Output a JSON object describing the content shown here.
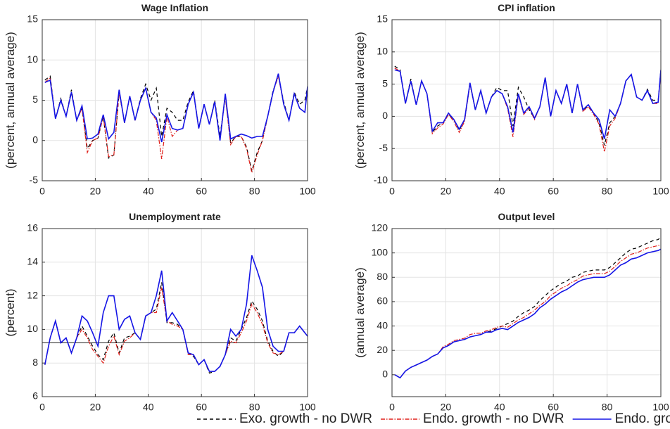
{
  "chart_data": [
    {
      "type": "line",
      "title": "Wage Inflation",
      "ylabel": "(percent, annual average)",
      "x": [
        1,
        3,
        5,
        7,
        9,
        11,
        13,
        15,
        17,
        19,
        21,
        23,
        25,
        27,
        29,
        31,
        33,
        35,
        37,
        39,
        41,
        43,
        45,
        47,
        49,
        51,
        53,
        55,
        57,
        59,
        61,
        63,
        65,
        67,
        69,
        71,
        73,
        75,
        77,
        79,
        81,
        83,
        85,
        87,
        89,
        91,
        93,
        95,
        97,
        99,
        100
      ],
      "xlim": [
        0,
        100
      ],
      "xticks": [
        0,
        20,
        40,
        60,
        80,
        100
      ],
      "ylim": [
        -5,
        15
      ],
      "yticks": [
        -5,
        0,
        5,
        10,
        15
      ],
      "grid": true,
      "series": [
        {
          "values": [
            7.5,
            8,
            2.7,
            5.2,
            3,
            6.3,
            2.5,
            4,
            -1,
            0,
            0.3,
            3,
            -2.2,
            -1.8,
            6,
            2.2,
            5.5,
            2.5,
            5.2,
            7,
            5,
            6.5,
            0.5,
            4,
            3.5,
            2.5,
            2.5,
            4.8,
            6.2,
            1.5,
            4.5,
            2,
            5,
            0.5,
            5.5,
            -0.3,
            0.5,
            0.5,
            -0.8,
            -3.8,
            -1.5,
            0,
            3,
            6.2,
            8,
            4.8,
            2.5,
            6,
            4.5,
            5,
            6.7
          ]
        },
        {
          "values": [
            7.2,
            7.8,
            2.7,
            5,
            3,
            6,
            2.5,
            4,
            -1.5,
            0,
            0.3,
            3,
            -2,
            -1.8,
            6,
            2.2,
            5.5,
            2.5,
            5,
            6.5,
            3.5,
            2.5,
            -2.3,
            3,
            0.5,
            1.3,
            1.5,
            4.5,
            6,
            1.5,
            4.5,
            2,
            4.8,
            0,
            5.5,
            -0.5,
            0.5,
            0.5,
            -1,
            -4,
            -1.8,
            0,
            3,
            6,
            8,
            4.5,
            2.5,
            5.8,
            4,
            3.5,
            6.5
          ]
        },
        {
          "values": [
            7.2,
            7.5,
            2.7,
            5,
            3,
            6,
            2.5,
            4.3,
            0.2,
            0.3,
            0.8,
            3.2,
            0.2,
            1,
            6.3,
            2.2,
            5.5,
            2.5,
            5,
            6.5,
            3.5,
            2.8,
            -0.2,
            3.2,
            1.5,
            1.3,
            1.5,
            4.5,
            6,
            1.5,
            4.5,
            2,
            4.8,
            0,
            5.8,
            0.2,
            0.5,
            0.8,
            0.6,
            0.3,
            0.5,
            0.5,
            3,
            6,
            8.3,
            4.5,
            2.5,
            5.8,
            4,
            3.5,
            6.7
          ]
        }
      ]
    },
    {
      "type": "line",
      "title": "CPI inflation",
      "ylabel": "(percent, annual average)",
      "x": [
        1,
        3,
        5,
        7,
        9,
        11,
        13,
        15,
        17,
        19,
        21,
        23,
        25,
        27,
        29,
        31,
        33,
        35,
        37,
        39,
        41,
        43,
        45,
        47,
        49,
        51,
        53,
        55,
        57,
        59,
        61,
        63,
        65,
        67,
        69,
        71,
        73,
        75,
        77,
        79,
        81,
        83,
        85,
        87,
        89,
        91,
        93,
        95,
        97,
        99,
        100
      ],
      "xlim": [
        0,
        100
      ],
      "xticks": [
        0,
        20,
        40,
        60,
        80,
        100
      ],
      "ylim": [
        -10,
        15
      ],
      "yticks": [
        -10,
        -5,
        0,
        5,
        10,
        15
      ],
      "grid": true,
      "series": [
        {
          "values": [
            7.8,
            7.2,
            2,
            5.8,
            1.8,
            5.5,
            3.5,
            -2.5,
            -1.5,
            -1,
            0.3,
            -0.5,
            -2.2,
            -0.5,
            5,
            1,
            4,
            0.5,
            3,
            4.5,
            4,
            4,
            -1.5,
            4.5,
            3,
            1,
            -0.3,
            1.5,
            6,
            0,
            4,
            2,
            5,
            0.5,
            5,
            1,
            1.5,
            0.5,
            -1,
            -4.5,
            -1,
            0,
            2,
            5.5,
            6.5,
            3,
            2.5,
            4.2,
            2.5,
            2.5,
            7.2
          ]
        },
        {
          "values": [
            7.5,
            7,
            2,
            5.5,
            1.8,
            5.5,
            3.5,
            -2.7,
            -1.8,
            -1.2,
            0.3,
            -0.8,
            -2.5,
            -0.8,
            5,
            1,
            4,
            0.5,
            3,
            4,
            3.5,
            1.2,
            -3.2,
            3.3,
            0.3,
            1.3,
            -0.5,
            1.5,
            6,
            0,
            4,
            2,
            5,
            0.5,
            5,
            0.8,
            1.5,
            0.3,
            -1.2,
            -5.5,
            -1.5,
            -0.3,
            2,
            5.5,
            6.5,
            3,
            2.5,
            4,
            2,
            2,
            7
          ]
        },
        {
          "values": [
            7.2,
            7,
            2,
            5.5,
            1.8,
            5.5,
            3.5,
            -2.3,
            -1,
            -1,
            0.5,
            -0.5,
            -2,
            -0.5,
            5.2,
            1,
            4,
            0.5,
            3,
            4,
            3.5,
            1.5,
            -2.5,
            3.5,
            0.5,
            1.5,
            -0.3,
            1.5,
            6,
            0,
            4,
            2,
            5,
            0.5,
            5,
            1,
            1.8,
            0.5,
            -0.5,
            -3.5,
            1,
            0,
            2,
            5.5,
            6.5,
            3,
            2.5,
            4,
            2,
            2.2,
            7.2
          ]
        }
      ]
    },
    {
      "type": "line",
      "title": "Unemployment rate",
      "ylabel": "(percent)",
      "hline": 9.2,
      "x": [
        1,
        3,
        5,
        7,
        9,
        11,
        13,
        15,
        17,
        19,
        21,
        23,
        25,
        27,
        29,
        31,
        33,
        35,
        37,
        39,
        41,
        43,
        45,
        47,
        49,
        51,
        53,
        55,
        57,
        59,
        61,
        63,
        65,
        67,
        69,
        71,
        73,
        75,
        77,
        79,
        81,
        83,
        85,
        87,
        89,
        91,
        93,
        95,
        97,
        99,
        100
      ],
      "xlim": [
        0,
        100
      ],
      "xticks": [
        0,
        20,
        40,
        60,
        80,
        100
      ],
      "ylim": [
        6,
        16
      ],
      "yticks": [
        6,
        8,
        10,
        12,
        14,
        16
      ],
      "grid": true,
      "series": [
        {
          "values": [
            7.9,
            9.5,
            10.5,
            9.2,
            9.5,
            8.6,
            9.5,
            10.2,
            9.6,
            9,
            8.5,
            8.2,
            9.3,
            9.8,
            8.6,
            9.5,
            9.6,
            9.8,
            9.4,
            10.8,
            11,
            11.2,
            12.8,
            10.4,
            10.4,
            10.3,
            10,
            8.6,
            8.4,
            7.9,
            8.2,
            7.4,
            7.5,
            7.8,
            8.5,
            9.5,
            9.3,
            10,
            10.7,
            11.7,
            11.2,
            10.5,
            9.3,
            8.7,
            8.4,
            8.7,
            9.8,
            9.8,
            10.2,
            9.8,
            9.6
          ]
        },
        {
          "values": [
            7.9,
            9.5,
            10.5,
            9.2,
            9.5,
            8.6,
            9.5,
            10,
            9.5,
            8.8,
            8.4,
            8,
            9,
            9.6,
            8.5,
            9.3,
            9.5,
            9.8,
            9.4,
            10.8,
            11,
            11,
            12.5,
            10.5,
            10.3,
            10.2,
            10,
            8.5,
            8.5,
            7.9,
            8.2,
            7.5,
            7.5,
            7.8,
            8.5,
            9.3,
            9.2,
            9.8,
            10.5,
            11.5,
            11,
            10.3,
            9.2,
            8.6,
            8.5,
            8.7,
            9.8,
            9.8,
            10.2,
            9.8,
            9.6
          ]
        },
        {
          "values": [
            7.9,
            9.5,
            10.5,
            9.2,
            9.5,
            8.6,
            9.5,
            10.8,
            10.5,
            9.8,
            9,
            11,
            12,
            12,
            10,
            10.6,
            10.8,
            9.8,
            9.4,
            10.8,
            11,
            12,
            13.5,
            10.5,
            11,
            10.5,
            10,
            8.6,
            8.5,
            7.9,
            8.2,
            7.5,
            7.5,
            7.8,
            8.5,
            10,
            9.6,
            10,
            11.5,
            14.4,
            13.5,
            12.5,
            10,
            9,
            8.7,
            8.7,
            9.8,
            9.8,
            10.2,
            9.8,
            9.6
          ]
        }
      ]
    },
    {
      "type": "line",
      "title": "Output level",
      "ylabel": "(annual average)",
      "x": [
        1,
        3,
        5,
        7,
        9,
        11,
        13,
        15,
        17,
        19,
        21,
        23,
        25,
        27,
        29,
        31,
        33,
        35,
        37,
        39,
        41,
        43,
        45,
        47,
        49,
        51,
        53,
        55,
        57,
        59,
        61,
        63,
        65,
        67,
        69,
        71,
        73,
        75,
        77,
        79,
        81,
        83,
        85,
        87,
        89,
        91,
        93,
        95,
        97,
        99,
        100
      ],
      "xlim": [
        0,
        100
      ],
      "xticks": [
        0,
        20,
        40,
        60,
        80,
        100
      ],
      "ylim": [
        -18,
        120
      ],
      "yticks": [
        0,
        20,
        40,
        60,
        80,
        100,
        120
      ],
      "grid": true,
      "series": [
        {
          "values": [
            0,
            -2.5,
            3,
            6,
            8,
            10,
            12,
            15,
            17,
            22,
            24,
            27,
            28,
            29,
            31,
            32,
            33,
            35,
            36,
            38,
            40,
            42,
            44,
            48,
            51,
            53,
            56,
            61,
            65,
            69,
            72,
            75,
            77,
            80,
            81,
            84,
            85,
            86,
            86,
            86,
            88,
            92,
            96,
            100,
            103,
            104,
            106,
            108,
            110,
            111,
            113
          ]
        },
        {
          "values": [
            0,
            -2.5,
            3,
            6,
            8,
            10,
            12,
            15,
            17,
            23,
            25,
            28,
            29,
            30,
            33,
            34,
            34,
            36,
            37,
            39,
            40,
            39,
            42,
            45,
            47,
            50,
            53,
            57,
            60,
            65,
            68,
            71,
            73,
            76,
            78,
            81,
            82,
            83,
            83,
            83,
            85,
            89,
            93,
            96,
            99,
            100,
            102,
            104,
            105,
            106,
            107
          ]
        },
        {
          "values": [
            0,
            -2.5,
            3,
            6,
            8,
            10,
            12,
            15,
            17,
            22,
            24,
            27,
            28,
            29,
            31,
            32,
            33,
            35,
            35,
            37,
            38,
            37,
            40,
            43,
            45,
            47,
            50,
            55,
            58,
            62,
            65,
            68,
            70,
            73,
            76,
            78,
            79,
            80,
            80,
            80,
            82,
            86,
            90,
            92,
            95,
            96,
            98,
            100,
            101,
            102,
            103
          ]
        }
      ]
    }
  ],
  "legend": [
    {
      "name": "Exo. growth - no DWR",
      "color": "#000000",
      "dash": "5,4"
    },
    {
      "name": "Endo. growth - no DWR",
      "color": "#e0201b",
      "dash": "6,2,1.5,2"
    },
    {
      "name": "Endo. growth - DWR",
      "color": "#1515e6",
      "dash": "none"
    }
  ]
}
